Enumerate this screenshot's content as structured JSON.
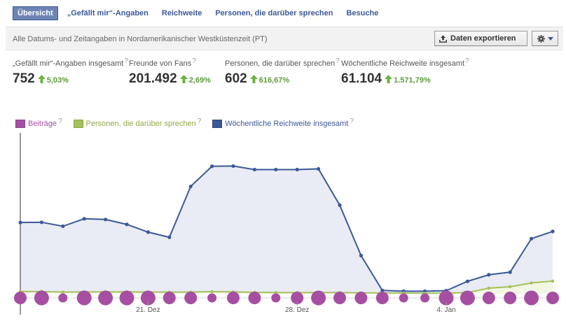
{
  "tabs": [
    {
      "label": "Übersicht",
      "active": true
    },
    {
      "label": "„Gefällt mir“-Angaben",
      "active": false
    },
    {
      "label": "Reichweite",
      "active": false
    },
    {
      "label": "Personen, die darüber sprechen",
      "active": false
    },
    {
      "label": "Besuche",
      "active": false
    }
  ],
  "infobar": {
    "text": "Alle Datums- und Zeitangaben in Nordamerikanischer Westküstenzeit (PT)",
    "export_label": "Daten exportieren",
    "export_icon": "upload-icon",
    "settings_icon": "gear-icon"
  },
  "stats": [
    {
      "label": "„Gefällt mir“-Angaben insgesamt",
      "value": "752",
      "change": "5,03%"
    },
    {
      "label": "Freunde von Fans",
      "value": "201.492",
      "change": "2,69%"
    },
    {
      "label": "Personen, die darüber sprechen",
      "value": "602",
      "change": "616,67%"
    },
    {
      "label": "Wöchentliche Reichweite insgesamt",
      "value": "61.104",
      "change": "1.571,79%"
    }
  ],
  "help_mark": "?",
  "colors": {
    "accent": "#3b5998",
    "posts": "#a64ea2",
    "talking": "#a6c05a",
    "reach": "#3b5998",
    "reach_fill": "#e9ecf5",
    "up": "#5d9b3a"
  },
  "chart_data": {
    "type": "line",
    "legend": [
      "Beiträge",
      "Personen, die darüber sprechen",
      "Wöchentliche Reichweite insgesamt"
    ],
    "x_tick_labels": [
      {
        "index": 6,
        "label": "21. Dez"
      },
      {
        "index": 13,
        "label": "28. Dez"
      },
      {
        "index": 20,
        "label": "4. Jan"
      }
    ],
    "series": [
      {
        "name": "Wöchentliche Reichweite insgesamt",
        "values": [
          30.4,
          30.5,
          28.8,
          32.0,
          31.7,
          29.6,
          26.3,
          24.1,
          45.8,
          54.4,
          54.5,
          53.0,
          53.0,
          53.0,
          53.3,
          37.8,
          16.3,
          1.4,
          1.1,
          1.1,
          1.3,
          5.3,
          8.1,
          9.2,
          23.5,
          26.6
        ]
      },
      {
        "name": "Personen, die darüber sprechen",
        "values": [
          0.95,
          0.95,
          0.7,
          0.8,
          0.8,
          0.8,
          0.7,
          0.7,
          0.7,
          0.9,
          0.8,
          0.6,
          0.5,
          0.5,
          0.5,
          0.5,
          0.4,
          0.3,
          0.3,
          0.2,
          0.3,
          0.5,
          2.4,
          3.0,
          4.6,
          5.4
        ]
      },
      {
        "name": "Beiträge",
        "values": [
          1,
          2,
          0,
          2,
          2,
          2,
          2,
          1,
          1,
          0,
          1,
          1,
          0,
          1,
          2,
          1,
          1,
          1,
          0,
          0,
          2,
          2,
          1,
          1,
          2,
          1
        ]
      }
    ]
  }
}
